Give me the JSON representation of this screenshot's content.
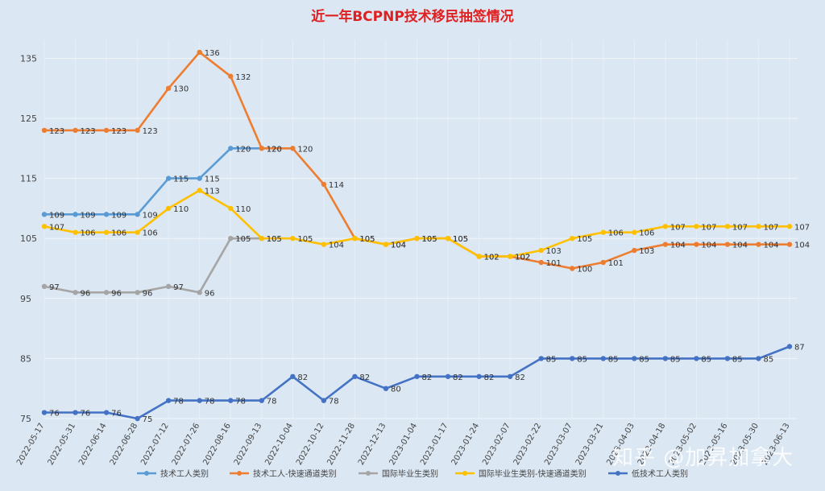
{
  "chart_data": {
    "type": "line",
    "title": "近一年BCPNP技术移民抽签情况",
    "xlabel": "",
    "ylabel": "",
    "ylim": [
      75,
      138
    ],
    "yticks": [
      75,
      85,
      95,
      105,
      115,
      125,
      135
    ],
    "grid": true,
    "legend_position": "bottom",
    "x": [
      "2022-05-17",
      "2022-05-31",
      "2022-06-14",
      "2022-06-28",
      "2022-07-12",
      "2022-07-26",
      "2022-08-16",
      "2022-09-13",
      "2022-10-04",
      "2022-10-12",
      "2022-11-28",
      "2022-12-13",
      "2023-01-04",
      "2023-01-17",
      "2023-01-24",
      "2023-02-07",
      "2023-02-22",
      "2023-03-07",
      "2023-03-21",
      "2023-04-03",
      "2023-04-18",
      "2023-05-02",
      "2023-05-16",
      "2023-05-30",
      "2023-06-13"
    ],
    "series": [
      {
        "name": "技术工人类别",
        "color": "#5b9bd5",
        "values": [
          109,
          109,
          109,
          109,
          115,
          115,
          120,
          120,
          null,
          null,
          null,
          null,
          null,
          null,
          null,
          null,
          null,
          null,
          null,
          null,
          null,
          null,
          null,
          null,
          null
        ]
      },
      {
        "name": "技术工人-快速通道类别",
        "color": "#ed7d31",
        "values": [
          123,
          123,
          123,
          123,
          130,
          136,
          132,
          120,
          120,
          114,
          105,
          104,
          105,
          105,
          102,
          102,
          101,
          100,
          101,
          103,
          104,
          104,
          104,
          104,
          104
        ]
      },
      {
        "name": "国际毕业生类别",
        "color": "#a5a5a5",
        "values": [
          97,
          96,
          96,
          96,
          97,
          96,
          105,
          105,
          null,
          null,
          null,
          null,
          null,
          null,
          null,
          null,
          null,
          null,
          null,
          null,
          null,
          null,
          null,
          null,
          null
        ]
      },
      {
        "name": "国际毕业生类别-快速通道类别",
        "color": "#ffc000",
        "values": [
          107,
          106,
          106,
          106,
          110,
          113,
          110,
          105,
          105,
          104,
          105,
          104,
          105,
          105,
          102,
          102,
          103,
          105,
          106,
          106,
          107,
          107,
          107,
          107,
          107
        ]
      },
      {
        "name": "低技术工人类别",
        "color": "#4472c4",
        "values": [
          76,
          76,
          76,
          75,
          78,
          78,
          78,
          78,
          82,
          78,
          82,
          80,
          82,
          82,
          82,
          82,
          85,
          85,
          85,
          85,
          85,
          85,
          85,
          85,
          87
        ]
      }
    ]
  },
  "watermark": "知乎 @加昇加拿大"
}
